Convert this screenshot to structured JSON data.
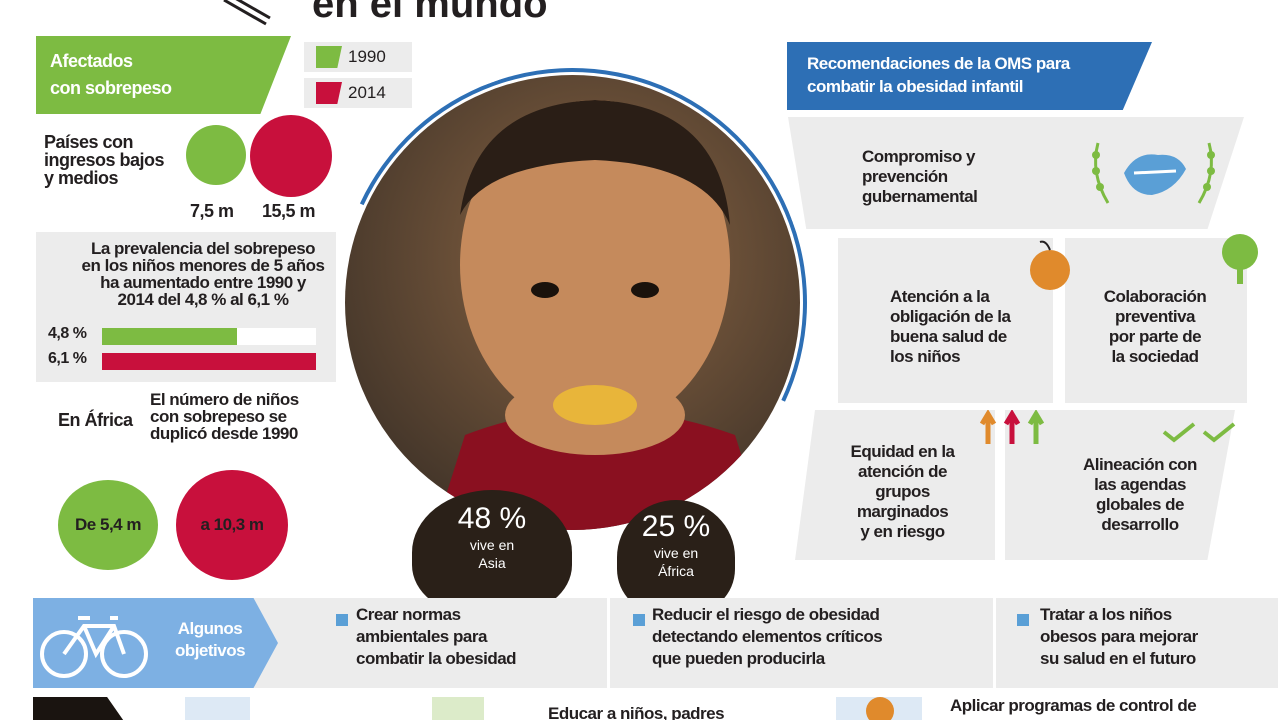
{
  "header": {
    "title": "en el mundo"
  },
  "legend": {
    "banner_line1": "Afectados",
    "banner_line2": "con sobrepeso",
    "year_a": "1990",
    "year_b": "2014",
    "color_a": "#7dbb42",
    "color_b": "#c8103c"
  },
  "countries": {
    "label_line1": "Países con",
    "label_line2": "ingresos bajos",
    "label_line3": "y medios",
    "value_a": "7,5 m",
    "value_b": "15,5 m"
  },
  "prevalence": {
    "text_line1": "La prevalencia del sobrepeso",
    "text_line2": "en los niños menores de 5 años",
    "text_line3": "ha aumentado entre 1990 y",
    "text_line4": "2014 del 4,8 % al 6,1 %",
    "bar_a_label": "4,8 %",
    "bar_b_label": "6,1 %",
    "bar_a_value": 4.8,
    "bar_b_value": 6.1
  },
  "africa": {
    "label": "En África",
    "text_line1": "El número de niños",
    "text_line2": "con sobrepeso se",
    "text_line3": "duplicó desde 1990",
    "from": "De 5,4 m",
    "to": "a 10,3 m"
  },
  "stats": {
    "asia_pct": "48 %",
    "asia_line1": "vive en",
    "asia_line2": "Asia",
    "africa_pct": "25 %",
    "africa_line1": "vive en",
    "africa_line2": "África"
  },
  "oms": {
    "banner_line1": "Recomendaciones de la OMS para",
    "banner_line2": "combatir la obesidad infantil",
    "rec1": [
      "Compromiso y",
      "prevención",
      "gubernamental"
    ],
    "rec2": [
      "Atención a la",
      "obligación de la",
      "buena salud de",
      "los niños"
    ],
    "rec3": [
      "Colaboración",
      "preventiva",
      "por parte de",
      "la sociedad"
    ],
    "rec4": [
      "Equidad en la",
      "atención de",
      "grupos",
      "marginados",
      "y en riesgo"
    ],
    "rec5": [
      "Alineación con",
      "las agendas",
      "globales de",
      "desarrollo"
    ]
  },
  "objectives": {
    "label_line1": "Algunos",
    "label_line2": "objetivos",
    "item1": [
      "Crear normas",
      "ambientales para",
      "combatir la obesidad"
    ],
    "item2": [
      "Reducir el riesgo de obesidad",
      "detectando elementos críticos",
      "que pueden producirla"
    ],
    "item3": [
      "Tratar a los niños",
      "obesos para mejorar",
      "su salud en el futuro"
    ]
  },
  "bottom": {
    "text1": "Educar a niños, padres",
    "text2": "Aplicar programas de control de"
  },
  "icons": {
    "pencil": "pencil-icon",
    "handshake": "handshake-icon",
    "orange": "orange-icon",
    "tree": "tree-icon",
    "arrows": "arrows-icon",
    "checks": "checkmarks-icon",
    "bike": "bicycle-icon"
  }
}
